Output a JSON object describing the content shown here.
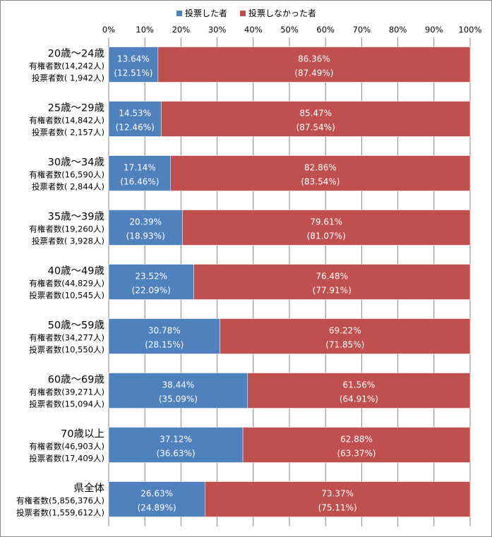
{
  "legend": {
    "voted": "投票した者",
    "not_voted": "投票しなかった者"
  },
  "colors": {
    "voted": "#4f81bd",
    "not_voted": "#c0504d",
    "grid": "#868686",
    "bar_border": "#ffffff"
  },
  "chart_data": {
    "type": "bar",
    "orientation": "horizontal",
    "stacked": true,
    "percent_stacked": true,
    "xlim": [
      0,
      100
    ],
    "x_ticks": [
      "0%",
      "10%",
      "20%",
      "30%",
      "40%",
      "50%",
      "60%",
      "70%",
      "80%",
      "90%",
      "100%"
    ],
    "legend_position": "top",
    "grid": true,
    "categories": [
      {
        "name": "20歳～24歳",
        "line2": "有権者数(14,242人)",
        "line3": "投票者数(  1,942人)"
      },
      {
        "name": "25歳～29歳",
        "line2": "有権者数(14,842人)",
        "line3": "投票者数(  2,157人)"
      },
      {
        "name": "30歳～34歳",
        "line2": "有権者数(16,590人)",
        "line3": "投票者数(  2,844人)"
      },
      {
        "name": "35歳～39歳",
        "line2": "有権者数(19,260人)",
        "line3": "投票者数(  3,928人)"
      },
      {
        "name": "40歳～49歳",
        "line2": "有権者数(44,829人)",
        "line3": "投票者数(10,545人)"
      },
      {
        "name": "50歳～59歳",
        "line2": "有権者数(34,277人)",
        "line3": "投票者数(10,550人)"
      },
      {
        "name": "60歳～69歳",
        "line2": "有権者数(39,271人)",
        "line3": "投票者数(15,094人)"
      },
      {
        "name": "70歳以上",
        "line2": "有権者数(46,903人)",
        "line3": "投票者数(17,409人)"
      },
      {
        "name": "県全体",
        "line2": "有権者数(5,856,376人)",
        "line3": "投票者数(1,559,612人)"
      }
    ],
    "series": [
      {
        "name": "投票した者",
        "values": [
          13.64,
          14.53,
          17.14,
          20.39,
          23.52,
          30.78,
          38.44,
          37.12,
          26.63
        ],
        "labels": [
          "13.64%",
          "14.53%",
          "17.14%",
          "20.39%",
          "23.52%",
          "30.78%",
          "38.44%",
          "37.12%",
          "26.63%"
        ],
        "sublabels": [
          "(12.51%)",
          "(12.46%)",
          "(16.46%)",
          "(18.93%)",
          "(22.09%)",
          "(28.15%)",
          "(35.09%)",
          "(36.63%)",
          "(24.89%)"
        ]
      },
      {
        "name": "投票しなかった者",
        "values": [
          86.36,
          85.47,
          82.86,
          79.61,
          76.48,
          69.22,
          61.56,
          62.88,
          73.37
        ],
        "labels": [
          "86.36%",
          "85.47%",
          "82.86%",
          "79.61%",
          "76.48%",
          "69.22%",
          "61.56%",
          "62.88%",
          "73.37%"
        ],
        "sublabels": [
          "(87.49%)",
          "(87.54%)",
          "(83.54%)",
          "(81.07%)",
          "(77.91%)",
          "(71.85%)",
          "(64.91%)",
          "(63.37%)",
          "(75.11%)"
        ]
      }
    ]
  }
}
